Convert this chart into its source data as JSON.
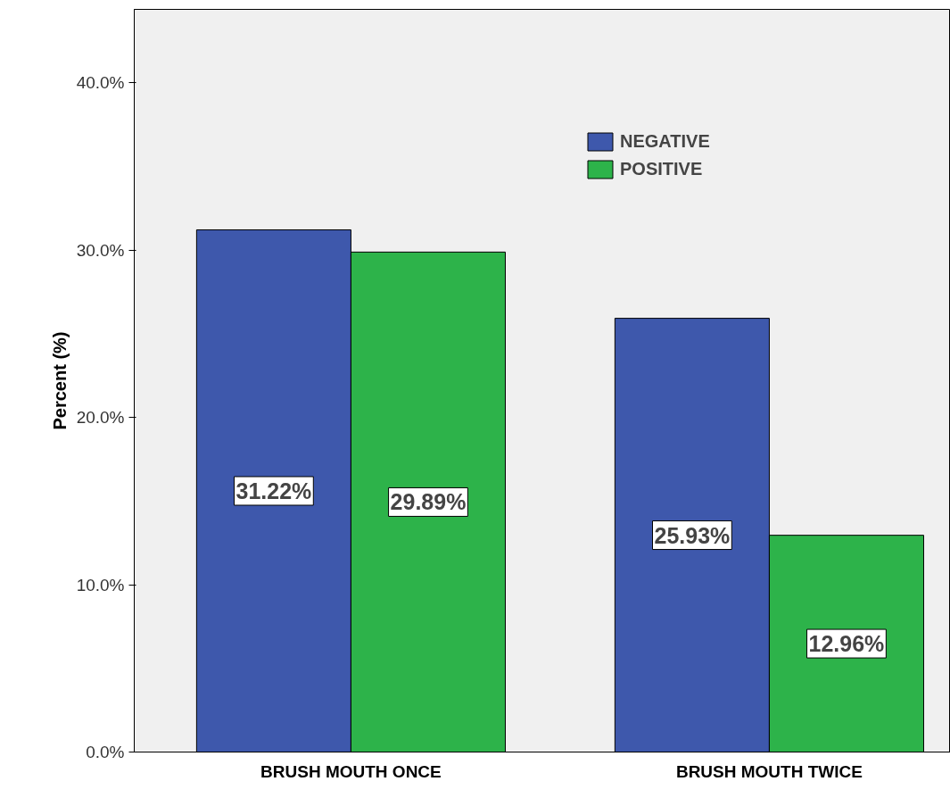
{
  "chart_data": {
    "type": "bar",
    "ylabel": "Percent (%)",
    "categories": [
      "BRUSH MOUTH ONCE",
      "BRUSH MOUTH TWICE"
    ],
    "series": [
      {
        "name": "NEGATIVE",
        "color": "#3e58ac",
        "values": [
          31.22,
          25.93
        ],
        "value_labels": [
          "31.22%",
          "25.93%"
        ]
      },
      {
        "name": "POSITIVE",
        "color": "#2db34a",
        "values": [
          29.89,
          12.96
        ],
        "value_labels": [
          "29.89%",
          "12.96%"
        ]
      }
    ],
    "ylim": [
      0,
      44.4
    ],
    "yticks": [
      {
        "value": 0,
        "label": "0.0%"
      },
      {
        "value": 10,
        "label": "10.0%"
      },
      {
        "value": 20,
        "label": "20.0%"
      },
      {
        "value": 30,
        "label": "30.0%"
      },
      {
        "value": 40,
        "label": "40.0%"
      }
    ],
    "grid": false,
    "legend": "top right"
  }
}
